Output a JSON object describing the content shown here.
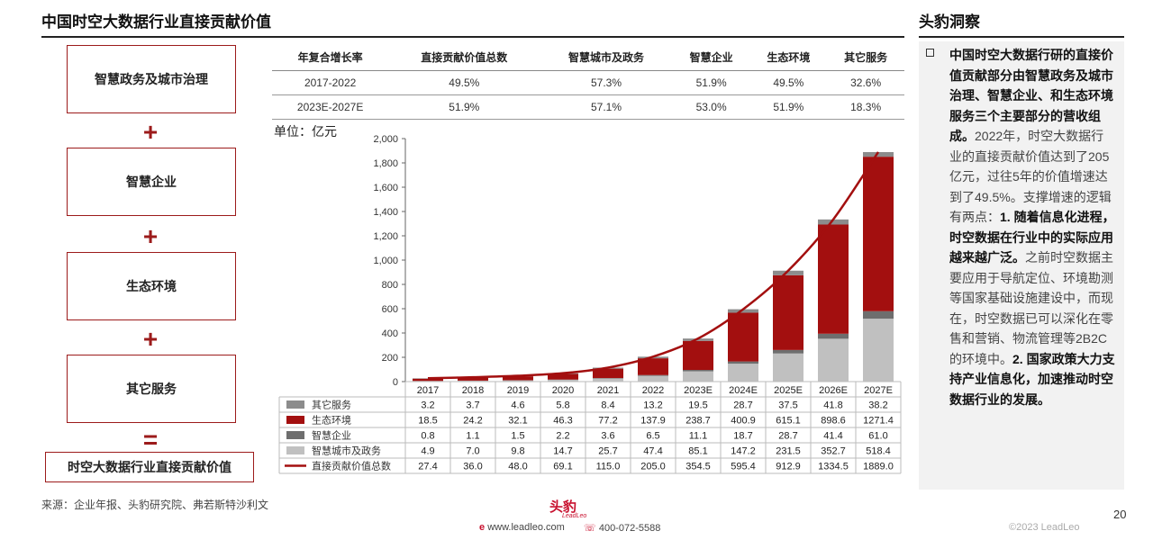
{
  "page": {
    "title": "中国时空大数据行业直接贡献价值",
    "unit_label": "单位：亿元",
    "source": "来源：企业年报、头豹研究院、弗若斯特沙利文",
    "page_number": "20",
    "copyright": "©2023 LeadLeo",
    "website": "www.leadleo.com",
    "phone": "400-072-5588",
    "logo_text": "头豹",
    "logo_sub": "LeadLeo"
  },
  "components": {
    "items": [
      "智慧政务及城市治理",
      "智慧企业",
      "生态环境",
      "其它服务"
    ],
    "plus": "+",
    "equals": "=",
    "total": "时空大数据行业直接贡献价值"
  },
  "cagr_table": {
    "headers": [
      "年复合增长率",
      "直接贡献价值总数",
      "智慧城市及政务",
      "智慧企业",
      "生态环境",
      "其它服务"
    ],
    "rows": [
      [
        "2017-2022",
        "49.5%",
        "57.3%",
        "51.9%",
        "49.5%",
        "32.6%"
      ],
      [
        "2023E-2027E",
        "51.9%",
        "57.1%",
        "53.0%",
        "51.9%",
        "18.3%"
      ]
    ]
  },
  "insight": {
    "title": "头豹洞察",
    "text_bold_1": "中国时空大数据行研的直接价值贡献部分由智慧政务及城市治理、智慧企业、和生态环境服务三个主要部分的营收组成。",
    "text_normal_1": "2022年，时空大数据行业的直接贡献价值达到了205亿元，过往5年的价值增速达到了49.5%。支撑增速的逻辑有两点：",
    "text_bold_2": "1. 随着信息化进程，时空数据在行业中的实际应用越来越广泛。",
    "text_normal_2": "之前时空数据主要应用于导航定位、环境勘测等国家基础设施建设中，而现在，时空数据已可以深化在零售和营销、物流管理等2B2C的环境中。",
    "text_bold_3": "2. 国家政策大力支持产业信息化，加速推动时空数据行业的发展。"
  },
  "chart_data": {
    "type": "bar",
    "stacked": true,
    "categories": [
      "2017",
      "2018",
      "2019",
      "2020",
      "2021",
      "2022",
      "2023E",
      "2024E",
      "2025E",
      "2026E",
      "2027E"
    ],
    "ylim": [
      0,
      2000
    ],
    "yticks": [
      "0",
      "200",
      "400",
      "600",
      "800",
      "1,000",
      "1,200",
      "1,400",
      "1,600",
      "1,800",
      "2,000"
    ],
    "series": [
      {
        "name": "其它服务",
        "values": [
          3.2,
          3.7,
          4.6,
          5.8,
          8.4,
          13.2,
          19.5,
          28.7,
          37.5,
          41.8,
          38.2
        ],
        "color": "#8c8c8c"
      },
      {
        "name": "生态环境",
        "values": [
          18.5,
          24.2,
          32.1,
          46.3,
          77.2,
          137.9,
          238.7,
          400.9,
          615.1,
          898.6,
          1271.4
        ],
        "color": "#a30f0f"
      },
      {
        "name": "智慧企业",
        "values": [
          0.8,
          1.1,
          1.5,
          2.2,
          3.6,
          6.5,
          11.1,
          18.7,
          28.7,
          41.4,
          61.0
        ],
        "color": "#6e6e6e"
      },
      {
        "name": "智慧城市及政务",
        "values": [
          4.9,
          7.0,
          9.8,
          14.7,
          25.7,
          47.4,
          85.1,
          147.2,
          231.5,
          352.7,
          518.4
        ],
        "color": "#c0c0c0"
      },
      {
        "name": "直接贡献价值总数",
        "type": "line",
        "values": [
          27.4,
          36.0,
          48.0,
          69.1,
          115.0,
          205.0,
          354.5,
          595.4,
          912.9,
          1334.5,
          1889.0
        ],
        "color": "#a30f0f"
      }
    ],
    "table_values": {
      "其它服务": [
        "3.2",
        "3.7",
        "4.6",
        "5.8",
        "8.4",
        "13.2",
        "19.5",
        "28.7",
        "37.5",
        "41.8",
        "38.2"
      ],
      "生态环境": [
        "18.5",
        "24.2",
        "32.1",
        "46.3",
        "77.2",
        "137.9",
        "238.7",
        "400.9",
        "615.1",
        "898.6",
        "1271.4"
      ],
      "智慧企业": [
        "0.8",
        "1.1",
        "1.5",
        "2.2",
        "3.6",
        "6.5",
        "11.1",
        "18.7",
        "28.7",
        "41.4",
        "61.0"
      ],
      "智慧城市及政务": [
        "4.9",
        "7.0",
        "9.8",
        "14.7",
        "25.7",
        "47.4",
        "85.1",
        "147.2",
        "231.5",
        "352.7",
        "518.4"
      ],
      "直接贡献价值总数": [
        "27.4",
        "36.0",
        "48.0",
        "69.1",
        "115.0",
        "205.0",
        "354.5",
        "595.4",
        "912.9",
        "1334.5",
        "1889.0"
      ]
    }
  }
}
